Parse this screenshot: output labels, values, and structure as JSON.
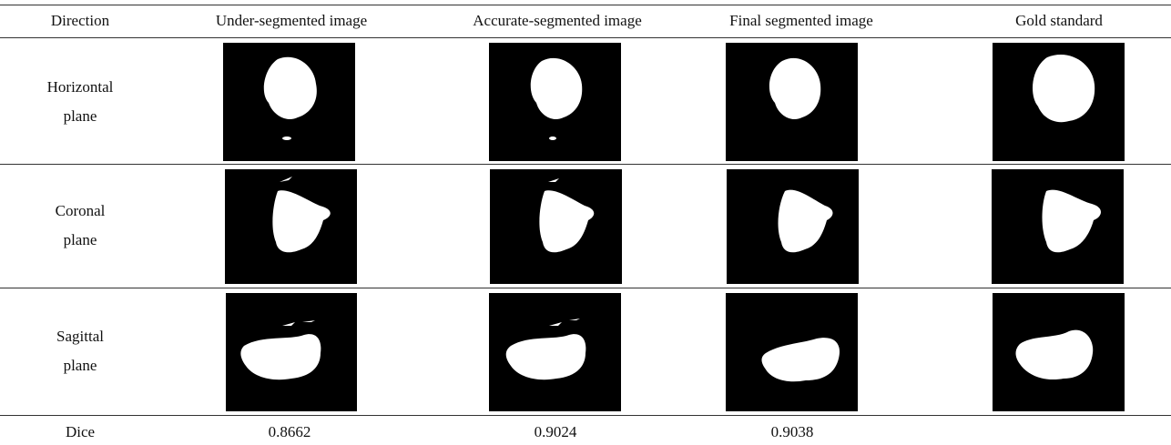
{
  "table": {
    "header": [
      "Direction",
      "Under-segmented image",
      "Accurate-segmented image",
      "Final segmented image",
      "Gold standard"
    ],
    "rows": [
      {
        "label": "Horizontal plane"
      },
      {
        "label": "Coronal plane"
      },
      {
        "label": "Sagittal plane"
      }
    ],
    "dice": {
      "label": "Dice",
      "values": [
        "0.8662",
        "0.9024",
        "0.9038"
      ]
    }
  }
}
